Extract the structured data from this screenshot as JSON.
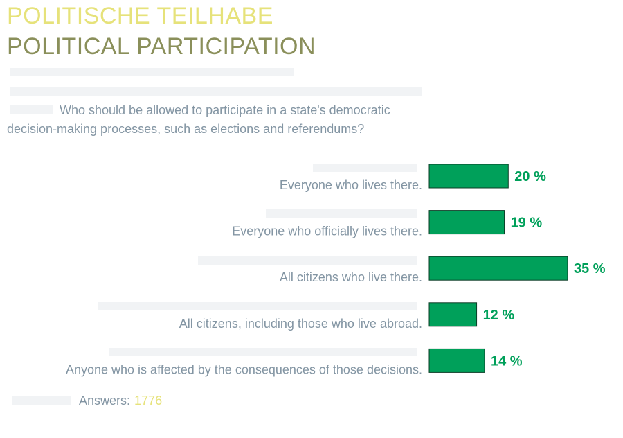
{
  "header": {
    "title_de": "POLITISCHE TEILHABE",
    "title_en": "POLITICAL PARTICIPATION"
  },
  "question": "Who should be allowed to participate in a state's democratic decision-making processes, such as elections and referendums?",
  "footer": {
    "answers_label": "Answers:",
    "answers_value": "1776"
  },
  "colors": {
    "bar": "#00a05a",
    "bar_stroke": "#0b3d26",
    "value_text": "#00a05a",
    "label_text": "#8395a3",
    "ghost_text": "#eef0f2"
  },
  "chart_data": {
    "type": "bar",
    "orientation": "horizontal",
    "title": "Who should be allowed to participate in a state's democratic decision-making processes, such as elections and referendums?",
    "categories": [
      "Everyone who lives there.",
      "Everyone who officially lives there.",
      "All citizens who live there.",
      "All citizens, including those who live abroad.",
      "Anyone who is affected by the consequences of those decisions."
    ],
    "values": [
      20,
      19,
      35,
      12,
      14
    ],
    "value_labels": [
      "20 %",
      "19 %",
      "35 %",
      "12 %",
      "14 %"
    ],
    "unit": "%",
    "xlim": [
      0,
      35
    ]
  }
}
